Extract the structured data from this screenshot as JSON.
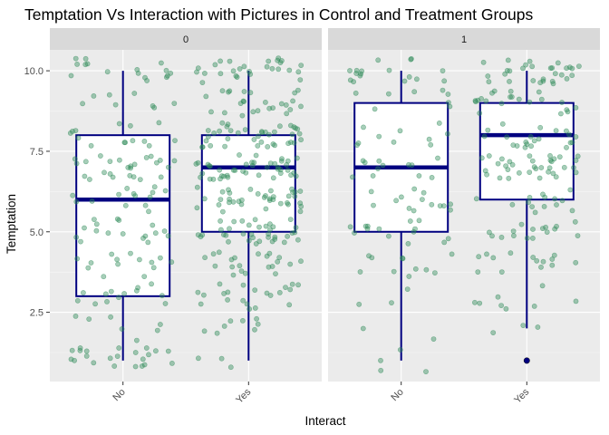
{
  "chart_data": {
    "type": "boxplot",
    "title": "Temptation Vs Interaction with Pictures in Control and Treatment Groups",
    "xlabel": "Interact",
    "ylabel": "Temptation",
    "ylim": [
      0.35,
      10.65
    ],
    "y_ticks": [
      2.5,
      5.0,
      7.5,
      10.0
    ],
    "y_tick_labels": [
      "2.5",
      "5.0",
      "7.5",
      "10.0"
    ],
    "categories": [
      "No",
      "Yes"
    ],
    "colors": {
      "panel_bg": "#EBEBEB",
      "strip_bg": "#D9D9D9",
      "grid_major": "#FFFFFF",
      "box": "#000080",
      "box_fill": "#FFFFFF",
      "points": "#2E8B57"
    },
    "facets": [
      {
        "label": "0",
        "boxes": [
          {
            "category": "No",
            "min": 1,
            "q1": 3,
            "median": 6,
            "q3": 8,
            "max": 10,
            "outliers": [],
            "n_points": 150
          },
          {
            "category": "Yes",
            "min": 1,
            "q1": 5,
            "median": 7,
            "q3": 8,
            "max": 10,
            "outliers": [],
            "n_points": 260
          }
        ]
      },
      {
        "label": "1",
        "boxes": [
          {
            "category": "No",
            "min": 1,
            "q1": 5,
            "median": 7,
            "q3": 9,
            "max": 10,
            "outliers": [],
            "n_points": 95
          },
          {
            "category": "Yes",
            "min": 2,
            "q1": 6,
            "median": 8,
            "q3": 9,
            "max": 10,
            "outliers": [
              1
            ],
            "n_points": 160
          }
        ]
      }
    ]
  }
}
